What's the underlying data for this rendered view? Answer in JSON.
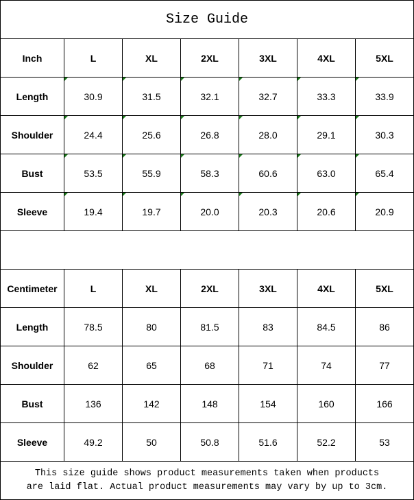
{
  "title": "Size Guide",
  "tables": [
    {
      "header": [
        "Inch",
        "L",
        "XL",
        "2XL",
        "3XL",
        "4XL",
        "5XL"
      ],
      "rows": [
        [
          "Length",
          "30.9",
          "31.5",
          "32.1",
          "32.7",
          "33.3",
          "33.9"
        ],
        [
          "Shoulder",
          "24.4",
          "25.6",
          "26.8",
          "28.0",
          "29.1",
          "30.3"
        ],
        [
          "Bust",
          "53.5",
          "55.9",
          "58.3",
          "60.6",
          "63.0",
          "65.4"
        ],
        [
          "Sleeve",
          "19.4",
          "19.7",
          "20.0",
          "20.3",
          "20.6",
          "20.9"
        ]
      ]
    },
    {
      "header": [
        "Centimeter",
        "L",
        "XL",
        "2XL",
        "3XL",
        "4XL",
        "5XL"
      ],
      "rows": [
        [
          "Length",
          "78.5",
          "80",
          "81.5",
          "83",
          "84.5",
          "86"
        ],
        [
          "Shoulder",
          "62",
          "65",
          "68",
          "71",
          "74",
          "77"
        ],
        [
          "Bust",
          "136",
          "142",
          "148",
          "154",
          "160",
          "166"
        ],
        [
          "Sleeve",
          "49.2",
          "50",
          "50.8",
          "51.6",
          "52.2",
          "53"
        ]
      ]
    }
  ],
  "footnote": [
    "This size guide shows product measurements taken when products",
    "are laid flat. Actual product measurements may vary by up to 3cm."
  ]
}
